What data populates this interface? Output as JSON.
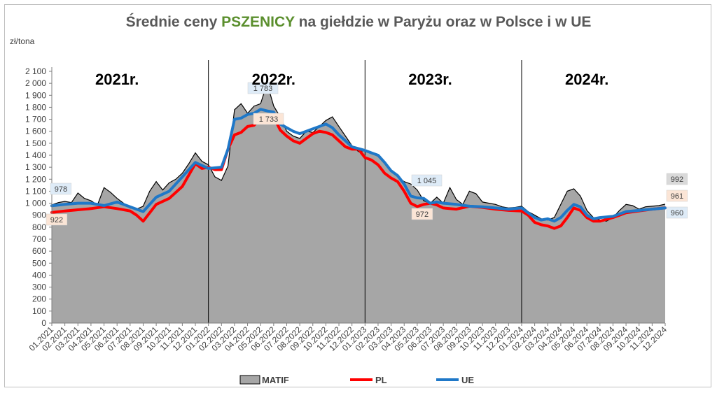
{
  "title": {
    "prefix": "Średnie ceny ",
    "highlight": "PSZENICY",
    "suffix": " na giełdzie w Paryżu oraz w Polsce i w UE"
  },
  "colors": {
    "matif": "#a6a6a6",
    "pl": "#ff0000",
    "ue": "#1f78c8",
    "highlight": "#5b8f2e"
  },
  "chart_data": {
    "type": "area",
    "title": "Średnie ceny PSZENICY na giełdzie w Paryżu oraz w Polsce i w UE",
    "ylabel": "zł/tona",
    "ylim": [
      0,
      2100
    ],
    "yticks": [
      0,
      100,
      200,
      300,
      400,
      500,
      600,
      700,
      800,
      900,
      1000,
      1100,
      1200,
      1300,
      1400,
      1500,
      1600,
      1700,
      1800,
      1900,
      2000,
      2100
    ],
    "ytick_labels": [
      "0",
      "100",
      "200",
      "300",
      "400",
      "500",
      "600",
      "700",
      "800",
      "900",
      "1 000",
      "1 100",
      "1 200",
      "1 300",
      "1 400",
      "1 500",
      "1 600",
      "1 700",
      "1 800",
      "1 900",
      "2 000",
      "2 100"
    ],
    "x_labels": [
      "01.2021",
      "02.2021",
      "03.2021",
      "04.2021",
      "05.2021",
      "06.2021",
      "07.2021",
      "08.2021",
      "09.2021",
      "10.2021",
      "11.2021",
      "12.2021",
      "01.2022",
      "02.2022",
      "03.2022",
      "04.2022",
      "05.2022",
      "06.2022",
      "07.2022",
      "08.2022",
      "09.2022",
      "10.2022",
      "11.2022",
      "12.2022",
      "01.2023",
      "02.2023",
      "03.2023",
      "04.2023",
      "05.2023",
      "06.2023",
      "07.2023",
      "08.2023",
      "09.2023",
      "10.2023",
      "11.2023",
      "12.2023",
      "01.2024",
      "02.2024",
      "03.2024",
      "04.2024",
      "05.2024",
      "06.2024",
      "07.2024",
      "08.2024",
      "09.2024",
      "10.2024",
      "11.2024",
      "12.2024"
    ],
    "year_labels": [
      {
        "text": "2021r.",
        "month": 5
      },
      {
        "text": "2022r.",
        "month": 17
      },
      {
        "text": "2023r.",
        "month": 29
      },
      {
        "text": "2024r.",
        "month": 41
      }
    ],
    "year_dividers": [
      12,
      24,
      36
    ],
    "series": [
      {
        "name": "MATIF",
        "style": "area",
        "points": [
          [
            0,
            985
          ],
          [
            0.5,
            1005
          ],
          [
            1,
            1015
          ],
          [
            1.5,
            1005
          ],
          [
            2,
            1085
          ],
          [
            2.5,
            1040
          ],
          [
            3,
            1020
          ],
          [
            3.5,
            985
          ],
          [
            4,
            1130
          ],
          [
            4.5,
            1090
          ],
          [
            5,
            1040
          ],
          [
            5.5,
            1000
          ],
          [
            6,
            960
          ],
          [
            6.5,
            950
          ],
          [
            7,
            975
          ],
          [
            7.5,
            1100
          ],
          [
            8,
            1180
          ],
          [
            8.5,
            1110
          ],
          [
            9,
            1170
          ],
          [
            9.5,
            1200
          ],
          [
            10,
            1250
          ],
          [
            10.5,
            1330
          ],
          [
            11,
            1420
          ],
          [
            11.5,
            1350
          ],
          [
            12,
            1320
          ],
          [
            12.5,
            1220
          ],
          [
            13,
            1190
          ],
          [
            13.5,
            1310
          ],
          [
            14,
            1780
          ],
          [
            14.5,
            1830
          ],
          [
            15,
            1750
          ],
          [
            15.5,
            1810
          ],
          [
            16,
            1830
          ],
          [
            16.5,
            2000
          ],
          [
            17,
            1810
          ],
          [
            17.5,
            1720
          ],
          [
            18,
            1600
          ],
          [
            18.5,
            1560
          ],
          [
            19,
            1540
          ],
          [
            19.5,
            1600
          ],
          [
            20,
            1590
          ],
          [
            20.5,
            1640
          ],
          [
            21,
            1690
          ],
          [
            21.5,
            1720
          ],
          [
            22,
            1640
          ],
          [
            22.5,
            1560
          ],
          [
            23,
            1480
          ],
          [
            23.5,
            1430
          ],
          [
            24,
            1440
          ],
          [
            24.5,
            1420
          ],
          [
            25,
            1390
          ],
          [
            25.5,
            1330
          ],
          [
            26,
            1270
          ],
          [
            26.5,
            1220
          ],
          [
            27,
            1180
          ],
          [
            27.5,
            1160
          ],
          [
            28,
            1110
          ],
          [
            28.5,
            1020
          ],
          [
            29,
            1000
          ],
          [
            29.5,
            1050
          ],
          [
            30,
            1000
          ],
          [
            30.5,
            1130
          ],
          [
            31,
            1030
          ],
          [
            31.5,
            990
          ],
          [
            32,
            1100
          ],
          [
            32.5,
            1080
          ],
          [
            33,
            1010
          ],
          [
            33.5,
            1000
          ],
          [
            34,
            990
          ],
          [
            34.5,
            970
          ],
          [
            35,
            960
          ],
          [
            35.5,
            965
          ],
          [
            36,
            975
          ],
          [
            36.5,
            930
          ],
          [
            37,
            900
          ],
          [
            37.5,
            870
          ],
          [
            38,
            860
          ],
          [
            38.5,
            880
          ],
          [
            39,
            990
          ],
          [
            39.5,
            1100
          ],
          [
            40,
            1120
          ],
          [
            40.5,
            1060
          ],
          [
            41,
            940
          ],
          [
            41.5,
            880
          ],
          [
            42,
            860
          ],
          [
            42.5,
            850
          ],
          [
            43,
            880
          ],
          [
            43.5,
            940
          ],
          [
            44,
            990
          ],
          [
            44.5,
            980
          ],
          [
            45,
            950
          ],
          [
            45.5,
            970
          ],
          [
            46,
            975
          ],
          [
            46.5,
            980
          ],
          [
            47,
            992
          ]
        ]
      },
      {
        "name": "PL",
        "style": "line",
        "points": [
          [
            0,
            922
          ],
          [
            1,
            935
          ],
          [
            2,
            945
          ],
          [
            3,
            955
          ],
          [
            4,
            970
          ],
          [
            5,
            955
          ],
          [
            6,
            935
          ],
          [
            6.5,
            900
          ],
          [
            7,
            850
          ],
          [
            8,
            990
          ],
          [
            9,
            1040
          ],
          [
            10,
            1140
          ],
          [
            11,
            1330
          ],
          [
            11.5,
            1290
          ],
          [
            12,
            1300
          ],
          [
            12.5,
            1280
          ],
          [
            13,
            1280
          ],
          [
            13.5,
            1450
          ],
          [
            14,
            1570
          ],
          [
            14.5,
            1590
          ],
          [
            15,
            1640
          ],
          [
            15.5,
            1650
          ],
          [
            16,
            1710
          ],
          [
            16.5,
            1733
          ],
          [
            17,
            1720
          ],
          [
            17.5,
            1610
          ],
          [
            18,
            1560
          ],
          [
            18.5,
            1520
          ],
          [
            19,
            1500
          ],
          [
            19.5,
            1540
          ],
          [
            20,
            1580
          ],
          [
            20.5,
            1600
          ],
          [
            21,
            1590
          ],
          [
            21.5,
            1570
          ],
          [
            22,
            1520
          ],
          [
            22.5,
            1470
          ],
          [
            23,
            1450
          ],
          [
            23.5,
            1450
          ],
          [
            24,
            1380
          ],
          [
            24.5,
            1360
          ],
          [
            25,
            1320
          ],
          [
            25.5,
            1250
          ],
          [
            26,
            1210
          ],
          [
            26.5,
            1180
          ],
          [
            27,
            1100
          ],
          [
            27.5,
            1000
          ],
          [
            28,
            972
          ],
          [
            28.5,
            990
          ],
          [
            29,
            1000
          ],
          [
            29.5,
            985
          ],
          [
            30,
            960
          ],
          [
            31,
            950
          ],
          [
            32,
            975
          ],
          [
            33,
            965
          ],
          [
            34,
            950
          ],
          [
            35,
            940
          ],
          [
            36,
            935
          ],
          [
            36.5,
            900
          ],
          [
            37,
            840
          ],
          [
            37.5,
            820
          ],
          [
            38,
            810
          ],
          [
            38.5,
            790
          ],
          [
            39,
            810
          ],
          [
            39.5,
            880
          ],
          [
            40,
            960
          ],
          [
            40.5,
            940
          ],
          [
            41,
            880
          ],
          [
            41.5,
            850
          ],
          [
            42,
            850
          ],
          [
            43,
            880
          ],
          [
            43.5,
            900
          ],
          [
            44,
            920
          ],
          [
            45,
            935
          ],
          [
            46,
            950
          ],
          [
            47,
            961
          ]
        ]
      },
      {
        "name": "UE",
        "style": "line",
        "points": [
          [
            0,
            978
          ],
          [
            1,
            990
          ],
          [
            2,
            1000
          ],
          [
            3,
            1000
          ],
          [
            4,
            980
          ],
          [
            5,
            1010
          ],
          [
            6,
            970
          ],
          [
            7,
            930
          ],
          [
            8,
            1050
          ],
          [
            9,
            1100
          ],
          [
            10,
            1220
          ],
          [
            11,
            1340
          ],
          [
            12,
            1290
          ],
          [
            13,
            1300
          ],
          [
            13.5,
            1450
          ],
          [
            14,
            1700
          ],
          [
            14.5,
            1710
          ],
          [
            15,
            1740
          ],
          [
            15.5,
            1750
          ],
          [
            16,
            1783
          ],
          [
            16.5,
            1770
          ],
          [
            17,
            1760
          ],
          [
            17.5,
            1660
          ],
          [
            18,
            1630
          ],
          [
            18.5,
            1600
          ],
          [
            19,
            1580
          ],
          [
            19.5,
            1600
          ],
          [
            20,
            1620
          ],
          [
            20.5,
            1640
          ],
          [
            21,
            1660
          ],
          [
            21.5,
            1630
          ],
          [
            22,
            1570
          ],
          [
            22.5,
            1520
          ],
          [
            23,
            1470
          ],
          [
            24,
            1440
          ],
          [
            24.5,
            1420
          ],
          [
            25,
            1400
          ],
          [
            25.5,
            1340
          ],
          [
            26,
            1270
          ],
          [
            26.5,
            1230
          ],
          [
            27,
            1160
          ],
          [
            27.5,
            1060
          ],
          [
            28,
            1045
          ],
          [
            28.5,
            1040
          ],
          [
            29,
            1000
          ],
          [
            29.5,
            1010
          ],
          [
            30,
            1000
          ],
          [
            31,
            990
          ],
          [
            32,
            975
          ],
          [
            33,
            970
          ],
          [
            34,
            960
          ],
          [
            35,
            950
          ],
          [
            36,
            960
          ],
          [
            36.5,
            920
          ],
          [
            37,
            880
          ],
          [
            37.5,
            860
          ],
          [
            38,
            870
          ],
          [
            38.5,
            850
          ],
          [
            39,
            880
          ],
          [
            39.5,
            940
          ],
          [
            40,
            990
          ],
          [
            40.5,
            970
          ],
          [
            41,
            900
          ],
          [
            41.5,
            870
          ],
          [
            42,
            880
          ],
          [
            43,
            890
          ],
          [
            43.5,
            910
          ],
          [
            44,
            930
          ],
          [
            45,
            940
          ],
          [
            46,
            950
          ],
          [
            47,
            960
          ]
        ]
      }
    ],
    "data_labels": [
      {
        "series": "UE",
        "month": 0,
        "text": "978"
      },
      {
        "series": "PL",
        "month": 0,
        "text": "922"
      },
      {
        "series": "UE",
        "month": 16,
        "text": "1 783"
      },
      {
        "series": "PL",
        "month": 16.5,
        "text": "1 733"
      },
      {
        "series": "UE",
        "month": 28,
        "text": "1 045"
      },
      {
        "series": "PL",
        "month": 28,
        "text": "972"
      },
      {
        "series": "MATIF",
        "month": 47,
        "text": "992"
      },
      {
        "series": "PL",
        "month": 47,
        "text": "961"
      },
      {
        "series": "UE",
        "month": 47,
        "text": "960"
      }
    ],
    "legend": [
      "MATIF",
      "PL",
      "UE"
    ],
    "legend_position": "bottom",
    "grid": false
  }
}
